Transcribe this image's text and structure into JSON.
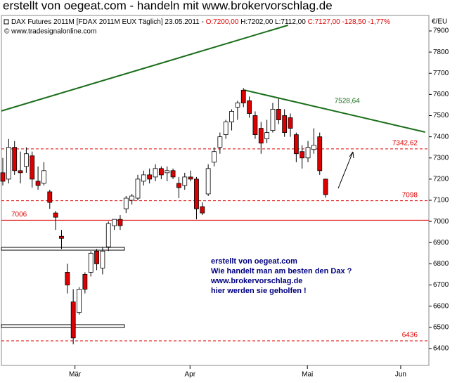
{
  "chart_data": {
    "type": "candlestick",
    "title": "erstellt von oegeat.com - handeln mit www.brokervorschlag.de",
    "info": [
      "DAX Futures 2011M [FDAX 2011M EUX  Täglich] 23.05.2011 - ",
      "O:7200,00",
      " H:7202,00 L:7112,00 ",
      "C:7127,00 -128,50 -1,77%"
    ],
    "copyright": "© www.tradesignalonline.com",
    "y_unit": "€/EU",
    "up_color": "#ffffff",
    "down_color": "#dd0000",
    "x": [
      0,
      1,
      2,
      3,
      4,
      5,
      6,
      7,
      8,
      9,
      10,
      11,
      12,
      13,
      14,
      15,
      16,
      17,
      18,
      19,
      20,
      21,
      22,
      23,
      24,
      25,
      26,
      27,
      28,
      29,
      30,
      31,
      32,
      33,
      34,
      35,
      36,
      37,
      38,
      39,
      40,
      41,
      42,
      43,
      44,
      45,
      46,
      47,
      48,
      49,
      50,
      51,
      52,
      53,
      54,
      55
    ],
    "open": [
      7230,
      7200,
      7350,
      7240,
      7260,
      7310,
      7190,
      7180,
      7140,
      7040,
      6930,
      6760,
      6620,
      6570,
      6750,
      6760,
      6860,
      6780,
      6880,
      6980,
      7010,
      7060,
      7100,
      7110,
      7190,
      7220,
      7210,
      7250,
      7230,
      7240,
      7180,
      7170,
      7210,
      7200,
      7070,
      7130,
      7280,
      7350,
      7410,
      7470,
      7540,
      7620,
      7570,
      7500,
      7440,
      7390,
      7430,
      7530,
      7500,
      7490,
      7410,
      7330,
      7300,
      7340,
      7400,
      7200
    ],
    "high": [
      7300,
      7390,
      7380,
      7330,
      7350,
      7330,
      7260,
      7280,
      7150,
      7050,
      6960,
      6800,
      6680,
      6690,
      6760,
      6860,
      6870,
      6880,
      7000,
      7010,
      7030,
      7120,
      7130,
      7220,
      7240,
      7250,
      7270,
      7260,
      7260,
      7250,
      7210,
      7230,
      7240,
      7210,
      7090,
      7270,
      7350,
      7420,
      7480,
      7530,
      7570,
      7630,
      7590,
      7520,
      7470,
      7480,
      7560,
      7580,
      7530,
      7510,
      7420,
      7360,
      7380,
      7440,
      7420,
      7202
    ],
    "low": [
      7170,
      7180,
      7220,
      7180,
      7230,
      7160,
      7150,
      7170,
      7060,
      6960,
      6870,
      6660,
      6420,
      6560,
      6660,
      6740,
      6770,
      6750,
      6860,
      6960,
      6960,
      7040,
      7080,
      7100,
      7170,
      7180,
      7190,
      7200,
      7190,
      7200,
      7110,
      7150,
      7190,
      7010,
      7030,
      7120,
      7260,
      7320,
      7390,
      7430,
      7480,
      7540,
      7490,
      7390,
      7320,
      7370,
      7420,
      7460,
      7400,
      7400,
      7280,
      7250,
      7280,
      7320,
      7220,
      7112
    ],
    "close": [
      7190,
      7350,
      7240,
      7230,
      7320,
      7200,
      7170,
      7240,
      7090,
      7020,
      6920,
      6700,
      6450,
      6680,
      6680,
      6850,
      6800,
      6860,
      6990,
      7010,
      6980,
      7110,
      7120,
      7200,
      7220,
      7200,
      7250,
      7220,
      7240,
      7210,
      7160,
      7210,
      7200,
      7060,
      7040,
      7250,
      7330,
      7400,
      7470,
      7520,
      7560,
      7560,
      7510,
      7410,
      7370,
      7420,
      7530,
      7480,
      7420,
      7440,
      7320,
      7300,
      7350,
      7360,
      7240,
      7127
    ],
    "xlim": [
      -0.24,
      72.6
    ],
    "xticks": [
      {
        "value": 12.3,
        "label": "Mär"
      },
      {
        "value": 31.9,
        "label": "Apr"
      },
      {
        "value": 51.9,
        "label": "Mai"
      },
      {
        "value": 67.8,
        "label": "Jun"
      }
    ],
    "ylim": [
      6320,
      7973
    ],
    "yticks": [
      6400,
      6500,
      6600,
      6700,
      6800,
      6900,
      7000,
      7100,
      7200,
      7300,
      7400,
      7500,
      7600,
      7700,
      7800,
      7900
    ],
    "hlines": [
      {
        "value": 7342.62,
        "label": "7342,62",
        "style": "dashed",
        "side": "right"
      },
      {
        "value": 7098,
        "label": "7098",
        "style": "dashed",
        "side": "right"
      },
      {
        "value": 7006,
        "label": "7006",
        "style": "solid",
        "side": "left"
      },
      {
        "value": 6436,
        "label": "6436",
        "style": "dashed",
        "side": "right"
      }
    ],
    "line_color": "#dd0000",
    "trend_color": "#1a6e1a",
    "trendlines": [
      {
        "x": [
          -0.24,
          48.6
        ],
        "y": [
          7522,
          7927
        ]
      },
      {
        "x": [
          41.1,
          71.96
        ],
        "y": [
          7621,
          7422
        ],
        "label": "7528,64",
        "label_x": 56.5
      }
    ],
    "note": [
      "erstellt von oegeat.com",
      "Wie handelt man am besten den Dax ?",
      "www.brokervorschlag.de",
      "hier werden sie geholfen !"
    ]
  }
}
